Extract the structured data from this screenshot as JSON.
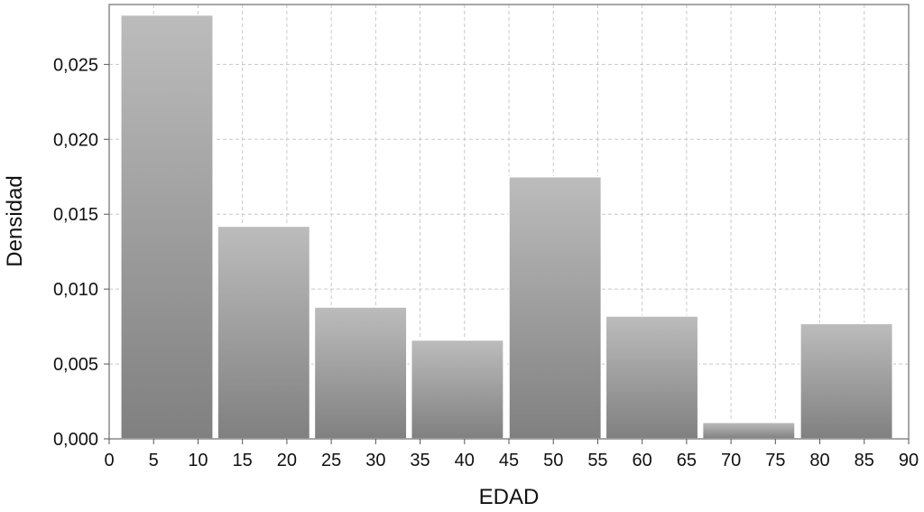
{
  "chart_data": {
    "type": "bar",
    "title": "",
    "xlabel": "EDAD",
    "ylabel": "Densidad",
    "xlim": [
      0,
      90
    ],
    "ylim": [
      0,
      0.029
    ],
    "grid": true,
    "legend": "none",
    "x_ticks": [
      0,
      5,
      10,
      15,
      20,
      25,
      30,
      35,
      40,
      45,
      50,
      55,
      60,
      65,
      70,
      75,
      80,
      85,
      90
    ],
    "x_tick_labels": [
      "0",
      "5",
      "10",
      "15",
      "20",
      "25",
      "30",
      "35",
      "40",
      "45",
      "50",
      "55",
      "60",
      "65",
      "70",
      "75",
      "80",
      "85",
      "90"
    ],
    "y_ticks": [
      0,
      0.005,
      0.01,
      0.015,
      0.02,
      0.025
    ],
    "y_tick_labels": [
      "0,000",
      "0,005",
      "0,010",
      "0,015",
      "0,020",
      "0,025"
    ],
    "bins": [
      {
        "start": 1.3,
        "end": 11.7,
        "value": 0.0283
      },
      {
        "start": 12.2,
        "end": 22.6,
        "value": 0.0142
      },
      {
        "start": 23.1,
        "end": 33.5,
        "value": 0.0088
      },
      {
        "start": 34.0,
        "end": 44.4,
        "value": 0.0066
      },
      {
        "start": 45.0,
        "end": 55.4,
        "value": 0.0175
      },
      {
        "start": 55.9,
        "end": 66.3,
        "value": 0.0082
      },
      {
        "start": 66.8,
        "end": 77.2,
        "value": 0.0011
      },
      {
        "start": 77.8,
        "end": 88.2,
        "value": 0.0077
      }
    ],
    "bar_color_top": "#bcbcbc",
    "bar_color_bottom": "#808080",
    "bar_border_color": "#ffffff",
    "grid_color": "#c8c8c8",
    "frame_color": "#8a8a8a"
  }
}
